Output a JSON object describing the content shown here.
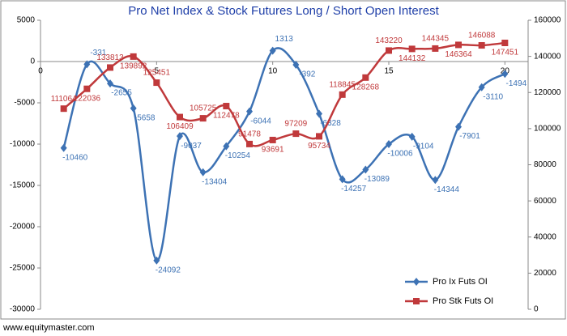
{
  "chart_data": {
    "type": "line",
    "title": "Pro Net Index & Stock Futures Long / Short Open Interest",
    "footer": "www.equitymaster.com",
    "x": [
      1,
      2,
      3,
      4,
      5,
      6,
      7,
      8,
      9,
      10,
      11,
      12,
      13,
      14,
      15,
      16,
      17,
      18,
      19,
      20
    ],
    "xlim": [
      0,
      21
    ],
    "xticks": [
      0,
      5,
      10,
      15,
      20
    ],
    "ylim": [
      -30000,
      5000
    ],
    "yticks": [
      -30000,
      -25000,
      -20000,
      -15000,
      -10000,
      -5000,
      0,
      5000
    ],
    "y2lim": [
      0,
      160000
    ],
    "y2ticks": [
      0,
      20000,
      40000,
      60000,
      80000,
      100000,
      120000,
      140000,
      160000
    ],
    "grid": false,
    "legend": "lower right",
    "series": [
      {
        "name": "Pro Ix Futs OI",
        "color": "#3d72b4",
        "marker": "diamond",
        "values": [
          -10460,
          -331,
          -2655,
          -5658,
          -24092,
          -9037,
          -13404,
          -10254,
          -6044,
          1313,
          -392,
          -6328,
          -14257,
          -13089,
          -10006,
          -9104,
          -14344,
          -7901,
          -3110,
          -1494
        ]
      },
      {
        "name": "Pro Stk Futs OI",
        "color": "#c0393b",
        "marker": "square",
        "axis": "y2",
        "values": [
          111064,
          122036,
          133813,
          139892,
          125451,
          106409,
          105725,
          112478,
          91478,
          93691,
          97209,
          95734,
          118845,
          128268,
          143220,
          144132,
          144345,
          146364,
          146088,
          147451
        ]
      }
    ]
  }
}
